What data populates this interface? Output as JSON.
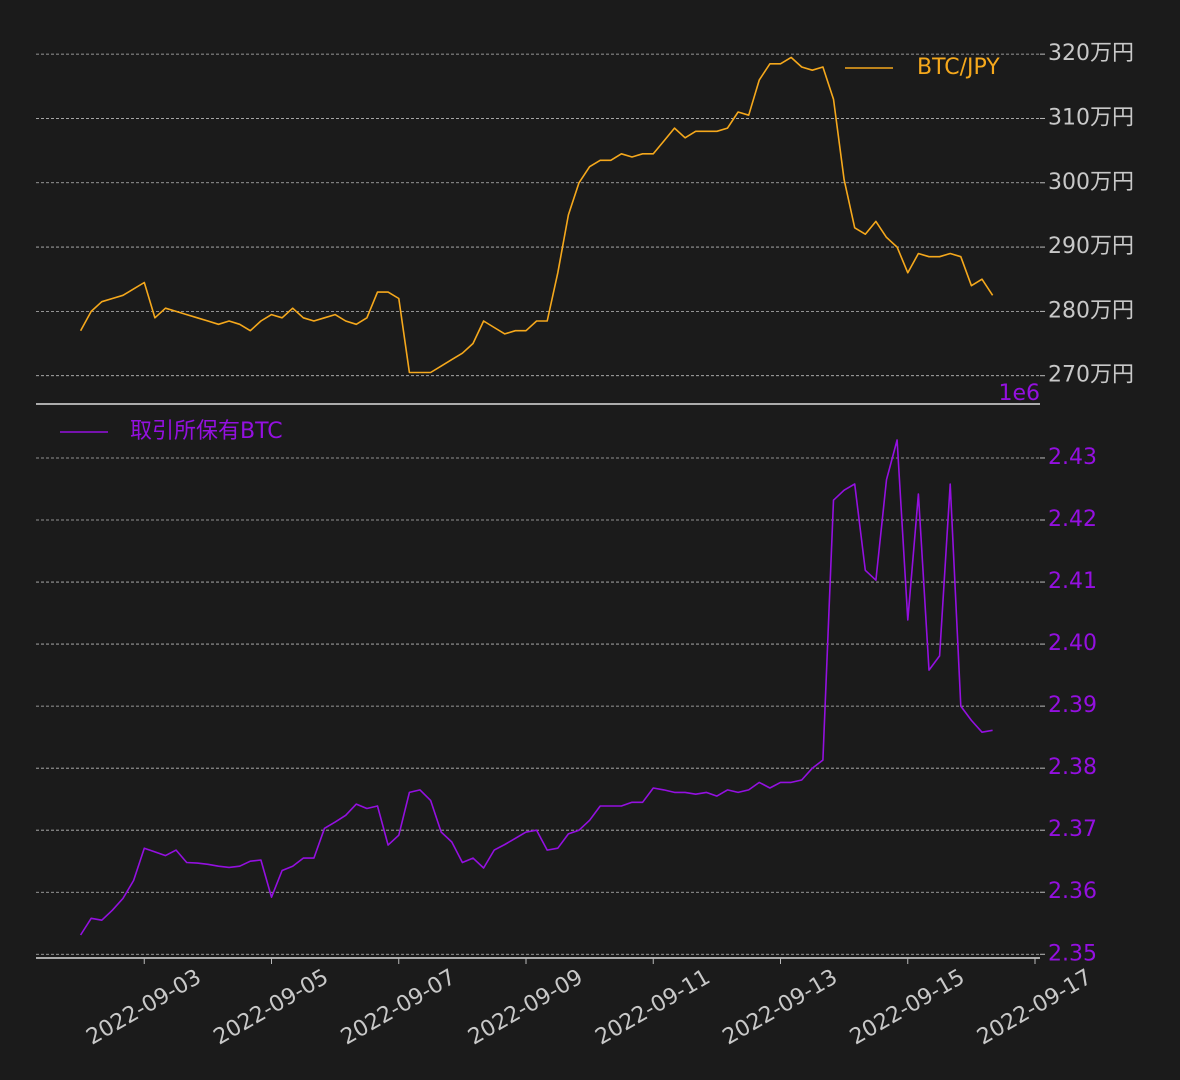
{
  "chart_data": [
    {
      "type": "line",
      "x": [
        "2022-09-02",
        "2022-09-02",
        "2022-09-02",
        "2022-09-02",
        "2022-09-02",
        "2022-09-02",
        "2022-09-03",
        "2022-09-03",
        "2022-09-03",
        "2022-09-03",
        "2022-09-03",
        "2022-09-03",
        "2022-09-04",
        "2022-09-04",
        "2022-09-04",
        "2022-09-04",
        "2022-09-04",
        "2022-09-04",
        "2022-09-05",
        "2022-09-05",
        "2022-09-05",
        "2022-09-05",
        "2022-09-05",
        "2022-09-05",
        "2022-09-06",
        "2022-09-06",
        "2022-09-06",
        "2022-09-06",
        "2022-09-06",
        "2022-09-06",
        "2022-09-07",
        "2022-09-07",
        "2022-09-07",
        "2022-09-07",
        "2022-09-07",
        "2022-09-07",
        "2022-09-08",
        "2022-09-08",
        "2022-09-08",
        "2022-09-08",
        "2022-09-08",
        "2022-09-08",
        "2022-09-09",
        "2022-09-09",
        "2022-09-09",
        "2022-09-09",
        "2022-09-09",
        "2022-09-09",
        "2022-09-10",
        "2022-09-10",
        "2022-09-10",
        "2022-09-10",
        "2022-09-10",
        "2022-09-10",
        "2022-09-11",
        "2022-09-11",
        "2022-09-11",
        "2022-09-11",
        "2022-09-11",
        "2022-09-11",
        "2022-09-12",
        "2022-09-12",
        "2022-09-12",
        "2022-09-12",
        "2022-09-12",
        "2022-09-12",
        "2022-09-13",
        "2022-09-13",
        "2022-09-13",
        "2022-09-13",
        "2022-09-13",
        "2022-09-13",
        "2022-09-14",
        "2022-09-14",
        "2022-09-14",
        "2022-09-14",
        "2022-09-14",
        "2022-09-14",
        "2022-09-15",
        "2022-09-15",
        "2022-09-15",
        "2022-09-15",
        "2022-09-15",
        "2022-09-15",
        "2022-09-16",
        "2022-09-16",
        "2022-09-16"
      ],
      "series": [
        {
          "name": "BTC/JPY",
          "color": "#f5a81c",
          "values": [
            2770000,
            2800000,
            2815000,
            2820000,
            2825000,
            2835000,
            2845000,
            2790000,
            2805000,
            2800000,
            2795000,
            2790000,
            2785000,
            2780000,
            2785000,
            2780000,
            2770000,
            2785000,
            2795000,
            2790000,
            2805000,
            2790000,
            2785000,
            2790000,
            2795000,
            2785000,
            2780000,
            2790000,
            2830000,
            2830000,
            2820000,
            2705000,
            2705000,
            2705000,
            2715000,
            2725000,
            2735000,
            2750000,
            2785000,
            2775000,
            2765000,
            2770000,
            2770000,
            2785000,
            2785000,
            2860000,
            2950000,
            3000000,
            3025000,
            3035000,
            3035000,
            3045000,
            3040000,
            3045000,
            3045000,
            3065000,
            3085000,
            3070000,
            3080000,
            3080000,
            3080000,
            3085000,
            3110000,
            3105000,
            3160000,
            3185000,
            3185000,
            3195000,
            3180000,
            3175000,
            3180000,
            3130000,
            3005000,
            2930000,
            2920000,
            2940000,
            2915000,
            2900000,
            2860000,
            2890000,
            2885000,
            2885000,
            2890000,
            2885000,
            2840000,
            2850000,
            2825000
          ]
        }
      ],
      "xlim": [
        "2022-09-01",
        "2022-09-17"
      ],
      "ylim": [
        2656000,
        3222000
      ],
      "yticks": [
        {
          "value": 2700000,
          "label": "270万円"
        },
        {
          "value": 2800000,
          "label": "280万円"
        },
        {
          "value": 2900000,
          "label": "290万円"
        },
        {
          "value": 3000000,
          "label": "300万円"
        },
        {
          "value": 3100000,
          "label": "310万円"
        },
        {
          "value": 3200000,
          "label": "320万円"
        }
      ],
      "grid": true,
      "legend": "upper right",
      "tick_label_color": "#c8c8c8"
    },
    {
      "type": "line",
      "x": [
        "2022-09-02",
        "2022-09-02",
        "2022-09-02",
        "2022-09-02",
        "2022-09-02",
        "2022-09-02",
        "2022-09-03",
        "2022-09-03",
        "2022-09-03",
        "2022-09-03",
        "2022-09-03",
        "2022-09-03",
        "2022-09-04",
        "2022-09-04",
        "2022-09-04",
        "2022-09-04",
        "2022-09-04",
        "2022-09-04",
        "2022-09-05",
        "2022-09-05",
        "2022-09-05",
        "2022-09-05",
        "2022-09-05",
        "2022-09-05",
        "2022-09-06",
        "2022-09-06",
        "2022-09-06",
        "2022-09-06",
        "2022-09-06",
        "2022-09-06",
        "2022-09-07",
        "2022-09-07",
        "2022-09-07",
        "2022-09-07",
        "2022-09-07",
        "2022-09-07",
        "2022-09-08",
        "2022-09-08",
        "2022-09-08",
        "2022-09-08",
        "2022-09-08",
        "2022-09-08",
        "2022-09-09",
        "2022-09-09",
        "2022-09-09",
        "2022-09-09",
        "2022-09-09",
        "2022-09-09",
        "2022-09-10",
        "2022-09-10",
        "2022-09-10",
        "2022-09-10",
        "2022-09-10",
        "2022-09-10",
        "2022-09-11",
        "2022-09-11",
        "2022-09-11",
        "2022-09-11",
        "2022-09-11",
        "2022-09-11",
        "2022-09-12",
        "2022-09-12",
        "2022-09-12",
        "2022-09-12",
        "2022-09-12",
        "2022-09-12",
        "2022-09-13",
        "2022-09-13",
        "2022-09-13",
        "2022-09-13",
        "2022-09-13",
        "2022-09-13",
        "2022-09-14",
        "2022-09-14",
        "2022-09-14",
        "2022-09-14",
        "2022-09-14",
        "2022-09-14",
        "2022-09-15",
        "2022-09-15",
        "2022-09-15",
        "2022-09-15",
        "2022-09-15",
        "2022-09-15",
        "2022-09-16",
        "2022-09-16",
        "2022-09-16"
      ],
      "series": [
        {
          "name": "取引所保有BTC",
          "color": "#9410e0",
          "values": [
            2.3531,
            2.3558,
            2.3555,
            2.3571,
            2.359,
            2.3619,
            2.3671,
            2.3665,
            2.3659,
            2.3668,
            2.3648,
            2.3647,
            2.3645,
            2.3642,
            2.364,
            2.3642,
            2.365,
            2.3652,
            2.3592,
            2.3635,
            2.3642,
            2.3655,
            2.3655,
            2.3703,
            2.3713,
            2.3724,
            2.3742,
            2.3735,
            2.3739,
            2.3676,
            2.3692,
            2.3761,
            2.3765,
            2.3748,
            2.3697,
            2.3681,
            2.3648,
            2.3655,
            2.3639,
            2.3668,
            2.3677,
            2.3687,
            2.3697,
            2.37,
            2.3668,
            2.3671,
            2.3694,
            2.37,
            2.3716,
            2.3739,
            2.3739,
            2.3739,
            2.3745,
            2.3745,
            2.3768,
            2.3765,
            2.3761,
            2.3761,
            2.3758,
            2.3761,
            2.3755,
            2.3765,
            2.3761,
            2.3765,
            2.3777,
            2.3768,
            2.3777,
            2.3777,
            2.3781,
            2.38,
            2.3813,
            2.4232,
            2.4248,
            2.4258,
            2.4119,
            2.4103,
            2.4265,
            2.4329,
            2.4039,
            2.4242,
            2.3958,
            2.3981,
            2.4258,
            2.39,
            2.3877,
            2.3858,
            2.3861
          ]
        }
      ],
      "xlim": [
        "2022-09-01",
        "2022-09-17"
      ],
      "xticks": [
        "2022-09-03",
        "2022-09-05",
        "2022-09-07",
        "2022-09-09",
        "2022-09-11",
        "2022-09-13",
        "2022-09-15",
        "2022-09-17"
      ],
      "ylim": [
        2.3494,
        2.4387
      ],
      "yticks": [
        2.35,
        2.36,
        2.37,
        2.38,
        2.39,
        {
          "value": 2.4,
          "label": "2.40"
        },
        2.41,
        2.42,
        2.43
      ],
      "offset_label": "1e6",
      "grid": true,
      "legend": "upper left",
      "tick_label_color": "#9410e0"
    }
  ]
}
